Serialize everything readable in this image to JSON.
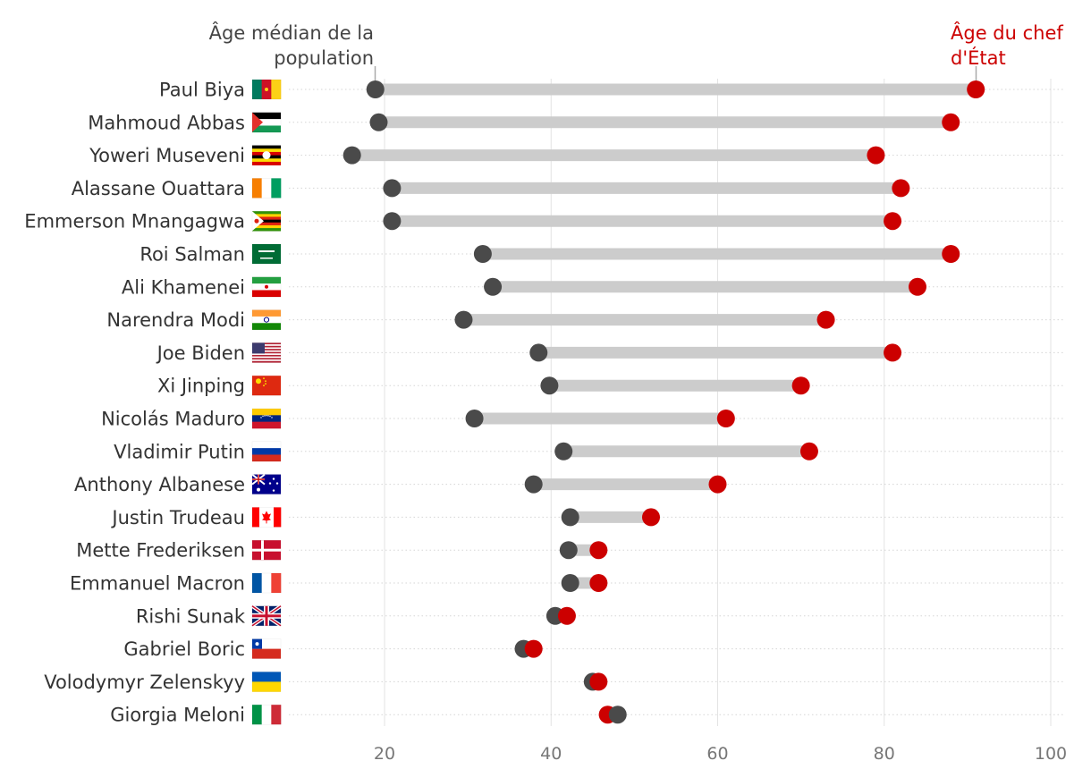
{
  "chart_data": {
    "type": "dumbbell",
    "title": "",
    "xlabel": "",
    "ylabel": "",
    "xlim": [
      10,
      102
    ],
    "xticks": [
      20,
      40,
      60,
      80,
      100
    ],
    "grid": true,
    "legend": "annotations",
    "series": [
      {
        "name": "Âge médian de la population",
        "color": "#4a4a4a"
      },
      {
        "name": "Âge du chef d'État",
        "color": "#cc0000"
      }
    ],
    "annotations": {
      "median": [
        "Âge médian de la",
        "population"
      ],
      "leader": [
        "Âge du chef",
        "d'État"
      ]
    },
    "rows": [
      {
        "name": "Paul Biya",
        "flag": "cameroon-flag",
        "median": 18.9,
        "leader": 91
      },
      {
        "name": "Mahmoud Abbas",
        "flag": "palestine-flag",
        "median": 19.3,
        "leader": 88
      },
      {
        "name": "Yoweri Museveni",
        "flag": "uganda-flag",
        "median": 16.1,
        "leader": 79
      },
      {
        "name": "Alassane Ouattara",
        "flag": "ivory-coast-flag",
        "median": 20.9,
        "leader": 82
      },
      {
        "name": "Emmerson Mnangagwa",
        "flag": "zimbabwe-flag",
        "median": 20.9,
        "leader": 81
      },
      {
        "name": "Roi Salman",
        "flag": "saudi-arabia-flag",
        "median": 31.8,
        "leader": 88
      },
      {
        "name": "Ali Khamenei",
        "flag": "iran-flag",
        "median": 33.0,
        "leader": 84
      },
      {
        "name": "Narendra Modi",
        "flag": "india-flag",
        "median": 29.5,
        "leader": 73
      },
      {
        "name": "Joe Biden",
        "flag": "usa-flag",
        "median": 38.5,
        "leader": 81
      },
      {
        "name": "Xi Jinping",
        "flag": "china-flag",
        "median": 39.8,
        "leader": 70
      },
      {
        "name": "Nicolás Maduro",
        "flag": "venezuela-flag",
        "median": 30.8,
        "leader": 61
      },
      {
        "name": "Vladimir Putin",
        "flag": "russia-flag",
        "median": 41.5,
        "leader": 71
      },
      {
        "name": "Anthony Albanese",
        "flag": "australia-flag",
        "median": 37.9,
        "leader": 60
      },
      {
        "name": "Justin Trudeau",
        "flag": "canada-flag",
        "median": 42.3,
        "leader": 52
      },
      {
        "name": "Mette Frederiksen",
        "flag": "denmark-flag",
        "median": 42.1,
        "leader": 45.7
      },
      {
        "name": "Emmanuel Macron",
        "flag": "france-flag",
        "median": 42.3,
        "leader": 45.7
      },
      {
        "name": "Rishi Sunak",
        "flag": "uk-flag",
        "median": 40.5,
        "leader": 41.9
      },
      {
        "name": "Gabriel Boric",
        "flag": "chile-flag",
        "median": 36.7,
        "leader": 37.9
      },
      {
        "name": "Volodymyr Zelenskyy",
        "flag": "ukraine-flag",
        "median": 45.0,
        "leader": 45.7
      },
      {
        "name": "Giorgia Meloni",
        "flag": "italy-flag",
        "median": 48.0,
        "leader": 46.8
      }
    ]
  }
}
